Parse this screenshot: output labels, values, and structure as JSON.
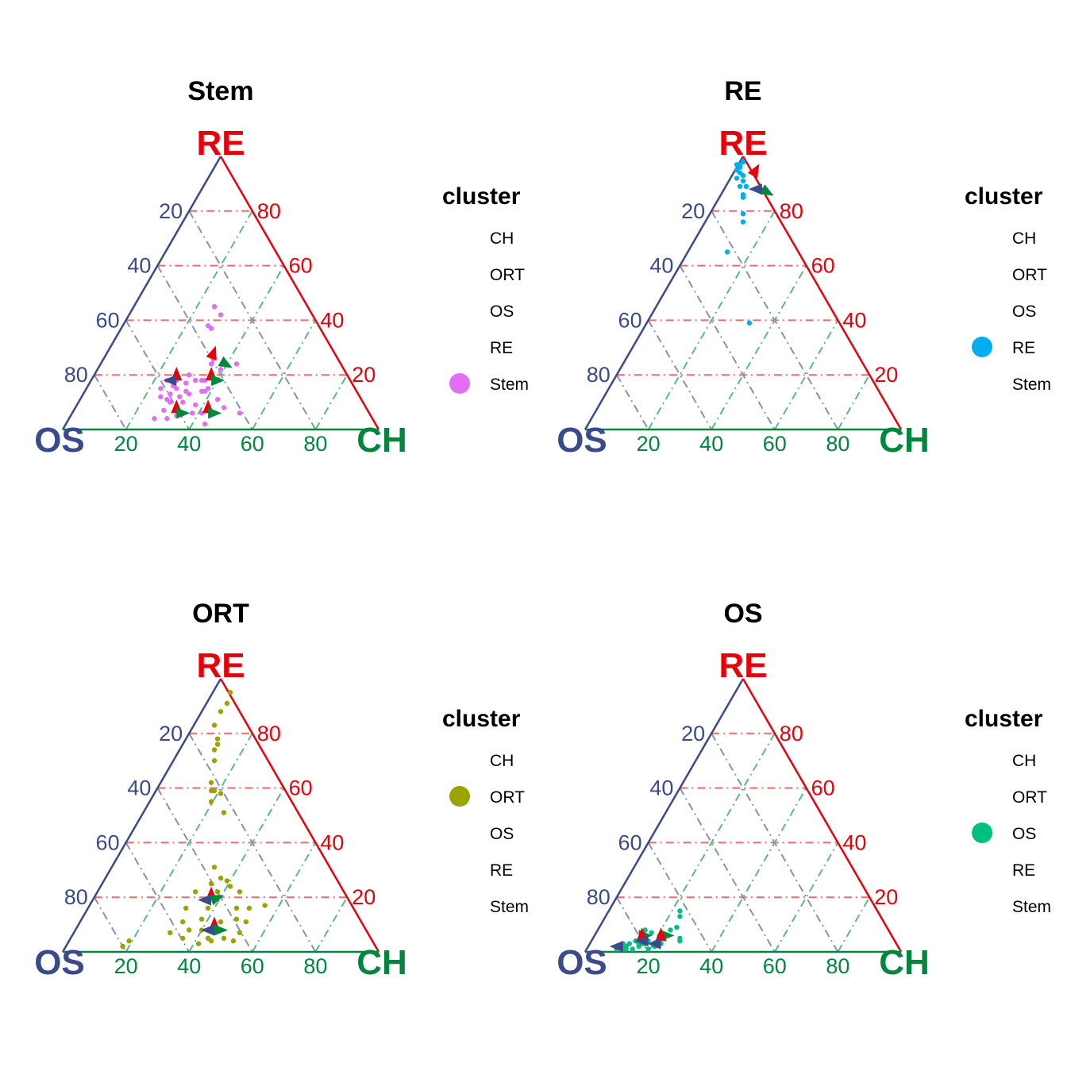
{
  "legend": {
    "title": "cluster",
    "entries": [
      "CH",
      "ORT",
      "OS",
      "RE",
      "Stem"
    ]
  },
  "axes": {
    "top": "RE",
    "left": "OS",
    "right": "CH",
    "colors": {
      "RE": "#e8000b",
      "OS": "#3b4a8c",
      "CH": "#00873e"
    },
    "tick_labels": [
      "20",
      "40",
      "60",
      "80"
    ]
  },
  "cluster_colors": {
    "Stem": "#e26ef7",
    "RE": "#00aef0",
    "ORT": "#9aa300",
    "OS": "#00c080",
    "CH": "#f8766d"
  },
  "chart_data": [
    {
      "type": "scatter",
      "coordinate_system": "ternary",
      "title": "Stem",
      "cluster": "Stem",
      "points": [
        [
          0.5,
          0.42
        ],
        [
          0.48,
          0.45
        ],
        [
          0.47,
          0.37
        ],
        [
          0.46,
          0.38
        ],
        [
          0.55,
          0.24
        ],
        [
          0.47,
          0.24
        ],
        [
          0.47,
          0.27
        ],
        [
          0.48,
          0.26
        ],
        [
          0.5,
          0.22
        ],
        [
          0.44,
          0.18
        ],
        [
          0.4,
          0.2
        ],
        [
          0.36,
          0.2
        ],
        [
          0.33,
          0.18
        ],
        [
          0.36,
          0.18
        ],
        [
          0.39,
          0.17
        ],
        [
          0.36,
          0.15
        ],
        [
          0.39,
          0.14
        ],
        [
          0.31,
          0.15
        ],
        [
          0.34,
          0.13
        ],
        [
          0.37,
          0.12
        ],
        [
          0.33,
          0.11
        ],
        [
          0.31,
          0.12
        ],
        [
          0.45,
          0.14
        ],
        [
          0.46,
          0.15
        ],
        [
          0.45,
          0.18
        ],
        [
          0.44,
          0.14
        ],
        [
          0.49,
          0.11
        ],
        [
          0.51,
          0.08
        ],
        [
          0.56,
          0.06
        ],
        [
          0.44,
          0.06
        ],
        [
          0.41,
          0.06
        ],
        [
          0.36,
          0.05
        ],
        [
          0.33,
          0.04
        ],
        [
          0.29,
          0.04
        ],
        [
          0.32,
          0.07
        ],
        [
          0.38,
          0.1
        ],
        [
          0.45,
          0.02
        ],
        [
          0.42,
          0.09
        ],
        [
          0.4,
          0.13
        ],
        [
          0.34,
          0.1
        ],
        [
          0.42,
          0.18
        ],
        [
          0.35,
          0.16
        ]
      ],
      "arrows": [
        {
          "x": 0.47,
          "y": 0.26,
          "dir": 70
        },
        {
          "x": 0.5,
          "y": 0.25,
          "dir": -30
        },
        {
          "x": 0.36,
          "y": 0.18,
          "dir": 90
        },
        {
          "x": 0.36,
          "y": 0.18,
          "dir": 180
        },
        {
          "x": 0.47,
          "y": 0.18,
          "dir": 90
        },
        {
          "x": 0.47,
          "y": 0.18,
          "dir": 0
        },
        {
          "x": 0.36,
          "y": 0.06,
          "dir": 90
        },
        {
          "x": 0.36,
          "y": 0.06,
          "dir": 0
        },
        {
          "x": 0.46,
          "y": 0.06,
          "dir": 90
        },
        {
          "x": 0.46,
          "y": 0.06,
          "dir": 0
        }
      ]
    },
    {
      "type": "scatter",
      "coordinate_system": "ternary",
      "title": "RE",
      "cluster": "RE",
      "points": [
        [
          0.49,
          0.96
        ],
        [
          0.49,
          0.94
        ],
        [
          0.49,
          0.97
        ],
        [
          0.48,
          0.95
        ],
        [
          0.48,
          0.92
        ],
        [
          0.5,
          0.91
        ],
        [
          0.49,
          0.89
        ],
        [
          0.51,
          0.89
        ],
        [
          0.5,
          0.86
        ],
        [
          0.5,
          0.85
        ],
        [
          0.5,
          0.79
        ],
        [
          0.5,
          0.76
        ],
        [
          0.45,
          0.65
        ],
        [
          0.52,
          0.39
        ],
        [
          0.5,
          0.98
        ],
        [
          0.5,
          0.93
        ],
        [
          0.48,
          0.97
        ]
      ],
      "arrows": [
        {
          "x": 0.53,
          "y": 0.93,
          "dir": 60
        },
        {
          "x": 0.56,
          "y": 0.88,
          "dir": -30
        },
        {
          "x": 0.56,
          "y": 0.88,
          "dir": 180
        }
      ]
    },
    {
      "type": "scatter",
      "coordinate_system": "ternary",
      "title": "ORT",
      "cluster": "ORT",
      "points": [
        [
          0.53,
          0.95
        ],
        [
          0.52,
          0.91
        ],
        [
          0.5,
          0.88
        ],
        [
          0.48,
          0.83
        ],
        [
          0.48,
          0.74
        ],
        [
          0.49,
          0.76
        ],
        [
          0.49,
          0.78
        ],
        [
          0.48,
          0.7
        ],
        [
          0.47,
          0.62
        ],
        [
          0.47,
          0.59
        ],
        [
          0.48,
          0.59
        ],
        [
          0.5,
          0.58
        ],
        [
          0.47,
          0.55
        ],
        [
          0.51,
          0.51
        ],
        [
          0.48,
          0.31
        ],
        [
          0.47,
          0.25
        ],
        [
          0.52,
          0.26
        ],
        [
          0.53,
          0.24
        ],
        [
          0.5,
          0.27
        ],
        [
          0.49,
          0.22
        ],
        [
          0.42,
          0.22
        ],
        [
          0.39,
          0.16
        ],
        [
          0.44,
          0.12
        ],
        [
          0.46,
          0.16
        ],
        [
          0.5,
          0.11
        ],
        [
          0.55,
          0.16
        ],
        [
          0.55,
          0.12
        ],
        [
          0.59,
          0.16
        ],
        [
          0.64,
          0.17
        ],
        [
          0.58,
          0.11
        ],
        [
          0.56,
          0.07
        ],
        [
          0.5,
          0.08
        ],
        [
          0.46,
          0.08
        ],
        [
          0.46,
          0.05
        ],
        [
          0.38,
          0.05
        ],
        [
          0.34,
          0.07
        ],
        [
          0.4,
          0.08
        ],
        [
          0.54,
          0.04
        ],
        [
          0.47,
          0.04
        ],
        [
          0.43,
          0.03
        ],
        [
          0.38,
          0.11
        ],
        [
          0.21,
          0.04
        ],
        [
          0.19,
          0.02
        ],
        [
          0.56,
          0.22
        ],
        [
          0.44,
          0.08
        ],
        [
          0.51,
          0.05
        ]
      ],
      "arrows": [
        {
          "x": 0.47,
          "y": 0.19,
          "dir": 90
        },
        {
          "x": 0.47,
          "y": 0.19,
          "dir": 180
        },
        {
          "x": 0.47,
          "y": 0.19,
          "dir": 20
        },
        {
          "x": 0.48,
          "y": 0.08,
          "dir": 90
        },
        {
          "x": 0.48,
          "y": 0.08,
          "dir": 0
        },
        {
          "x": 0.48,
          "y": 0.08,
          "dir": 180
        }
      ]
    },
    {
      "type": "scatter",
      "coordinate_system": "ternary",
      "title": "OS",
      "cluster": "OS",
      "points": [
        [
          0.12,
          0.01
        ],
        [
          0.1,
          0.01
        ],
        [
          0.13,
          0.02
        ],
        [
          0.15,
          0.01
        ],
        [
          0.17,
          0.02
        ],
        [
          0.14,
          0.03
        ],
        [
          0.11,
          0.02
        ],
        [
          0.18,
          0.03
        ],
        [
          0.2,
          0.04
        ],
        [
          0.16,
          0.04
        ],
        [
          0.2,
          0.01
        ],
        [
          0.22,
          0.02
        ],
        [
          0.24,
          0.03
        ],
        [
          0.27,
          0.08
        ],
        [
          0.29,
          0.09
        ],
        [
          0.3,
          0.13
        ],
        [
          0.3,
          0.15
        ],
        [
          0.3,
          0.05
        ],
        [
          0.3,
          0.04
        ],
        [
          0.21,
          0.07
        ],
        [
          0.19,
          0.08
        ],
        [
          0.13,
          0.01
        ],
        [
          0.17,
          0.03
        ],
        [
          0.12,
          0.03
        ]
      ],
      "arrows": [
        {
          "x": 0.12,
          "y": 0.02,
          "dir": 180
        },
        {
          "x": 0.17,
          "y": 0.06,
          "dir": 0
        },
        {
          "x": 0.18,
          "y": 0.04,
          "dir": 90
        },
        {
          "x": 0.2,
          "y": 0.04,
          "dir": 180
        },
        {
          "x": 0.24,
          "y": 0.06,
          "dir": 0
        },
        {
          "x": 0.24,
          "y": 0.04,
          "dir": 90
        },
        {
          "x": 0.24,
          "y": 0.03,
          "dir": 180
        }
      ]
    }
  ]
}
